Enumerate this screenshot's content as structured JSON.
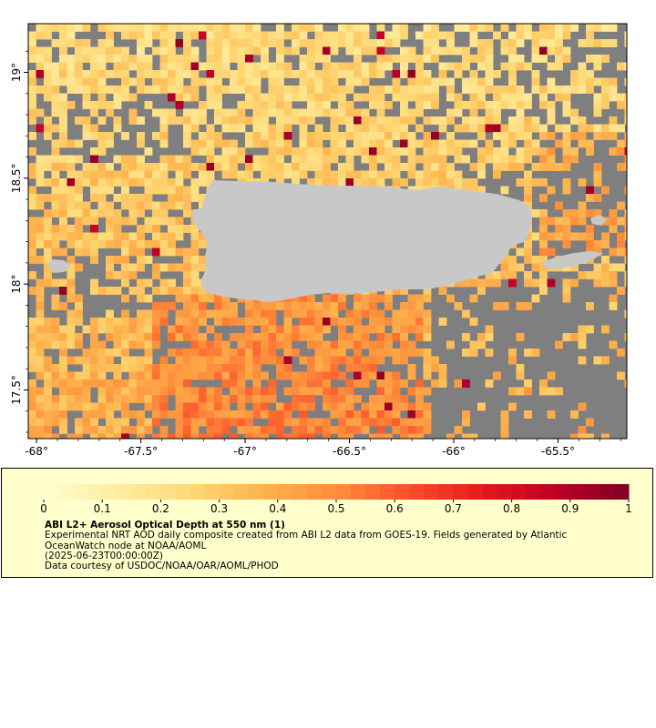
{
  "map": {
    "x_ticks": [
      "-68°",
      "-67.5°",
      "-67°",
      "-66.5°",
      "-66°",
      "-65.5°"
    ],
    "x_tick_values": [
      -68,
      -67.5,
      -67,
      -66.5,
      -66,
      -65.5
    ],
    "y_ticks": [
      "19°",
      "18.5°",
      "18°",
      "17.5°"
    ],
    "y_tick_values": [
      19,
      18.5,
      18,
      17.5
    ],
    "lon_range": [
      -68.04,
      -65.17
    ],
    "lat_range": [
      17.27,
      19.23
    ],
    "colors": {
      "no_data": "#7f7f7f",
      "land": "#c8c8c8",
      "frame": "#000000"
    },
    "land_names": [
      "Puerto Rico",
      "Vieques",
      "Culebra",
      "Mona Island"
    ]
  },
  "legend": {
    "tick_labels": [
      "0",
      "0.1",
      "0.2",
      "0.3",
      "0.4",
      "0.5",
      "0.6",
      "0.7",
      "0.8",
      "0.9",
      "1"
    ],
    "range": [
      0,
      1
    ],
    "colormap": [
      "#ffffcc",
      "#ffeda0",
      "#fed976",
      "#feb24c",
      "#fd8d3c",
      "#fc4e2a",
      "#e31a1c",
      "#bd0026",
      "#800026"
    ],
    "title": "ABI L2+ Aerosol Optical Depth at 550 nm (1)",
    "description": "Experimental NRT AOD daily composite created from ABI L2 data from GOES-19. Fields generated by Atlantic OceanWatch node at NOAA/AOML",
    "date": "(2025-06-23T00:00:00Z)",
    "credit": "Data courtesy of USDOC/NOAA/OAR/AOML/PHOD"
  }
}
